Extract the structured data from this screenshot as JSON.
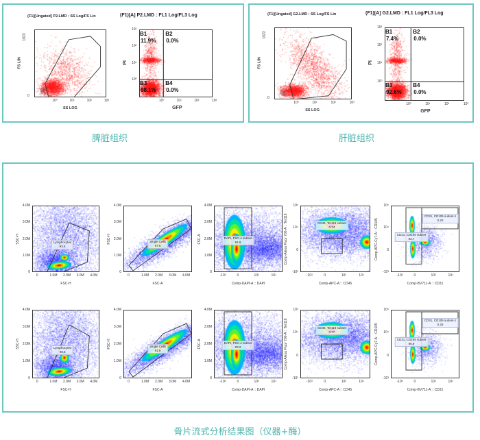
{
  "top_panels": [
    {
      "caption": "脾脏组织",
      "scatter": {
        "title": "(F1)[Ungated] P2.LMD : SS Log/FS Lin",
        "xlabel": "SS LOG",
        "ylabel": "FS LIN",
        "yticks": [
          "1023",
          "0"
        ],
        "xticks": [
          "10⁰",
          "10¹",
          "10²",
          "10³"
        ]
      },
      "quadrant": {
        "title": "(F1)[A] P2.LMD : FL1 Log/FL3 Log",
        "xlabel": "GFP",
        "ylabel": "PI",
        "yticks": [
          "10³",
          "10²",
          "10¹",
          "10⁰"
        ],
        "xticks": [
          "10⁰",
          "10¹",
          "10²",
          "10³"
        ],
        "quadrants": [
          {
            "name": "B1",
            "value": "11.9%"
          },
          {
            "name": "B2",
            "value": "0.0%"
          },
          {
            "name": "B3",
            "value": "88.1%"
          },
          {
            "name": "B4",
            "value": "0.0%"
          }
        ]
      }
    },
    {
      "caption": "肝脏组织",
      "scatter": {
        "title": "(F1)[Ungated] G2.LMD : SS Log/FS Lin",
        "xlabel": "SS LOG",
        "ylabel": "FS LIN",
        "yticks": [
          "1023",
          "0"
        ],
        "xticks": [
          "10⁰",
          "10¹",
          "10²",
          "10³"
        ]
      },
      "quadrant": {
        "title": "(F1)[A] G2.LMD : FL1 Log/FL3 Log",
        "xlabel": "GFP",
        "ylabel": "PI",
        "yticks": [
          "10³",
          "10²",
          "10¹",
          "10⁰"
        ],
        "xticks": [
          "10⁰",
          "10¹",
          "10²",
          "10³"
        ],
        "quadrants": [
          {
            "name": "B1",
            "value": "7.4%"
          },
          {
            "name": "B2",
            "value": "0.0%"
          },
          {
            "name": "B3",
            "value": "92.6%"
          },
          {
            "name": "B4",
            "value": "0.0%"
          }
        ]
      }
    }
  ],
  "bottom_panel": {
    "caption": "骨片流式分析结果图（仪器+酶）",
    "axes": [
      {
        "xlabel": "FSC-H",
        "ylabel": "SSC-H",
        "xticks": [
          "0",
          "1.0M",
          "2.0M",
          "3.0M",
          "4.0M"
        ],
        "yticks": [
          "4.0M",
          "3.0M",
          "2.0M",
          "1.0M",
          "0"
        ]
      },
      {
        "xlabel": "FSC-A",
        "ylabel": "FSC-H",
        "xticks": [
          "0",
          "1.0M",
          "2.0M",
          "3.0M",
          "4.0M"
        ],
        "yticks": [
          "4.0M",
          "3.0M",
          "2.0M",
          "1.0M",
          "0"
        ]
      },
      {
        "xlabel": "Comp-DAPI-A :: DAPI",
        "ylabel": "FSC-A",
        "xticks": [
          "-10³",
          "0",
          "10³",
          "10⁴"
        ],
        "yticks": [
          "4.0M",
          "3.0M",
          "2.0M",
          "1.0M",
          "0"
        ]
      },
      {
        "xlabel": "Comp-APC-A :: CD45",
        "ylabel": "Comp-Alexa Fluor 700-A :: Ter119",
        "xticks": [
          "-10³",
          "0",
          "10³",
          "10⁴"
        ],
        "yticks": [
          "10⁵",
          "10⁴",
          "0",
          "-10³"
        ]
      },
      {
        "xlabel": "Comp-BV711-A :: CD31",
        "ylabel": "Comp-APC-Cy7-A :: CD105",
        "xticks": [
          "-10³",
          "0",
          "10³",
          "10⁴"
        ],
        "yticks": [
          "10⁵",
          "10⁴",
          "0",
          "-10³"
        ]
      }
    ],
    "rows": [
      {
        "gates": [
          [
            {
              "name": "Lymphocytes",
              "value": "93.6"
            }
          ],
          [
            {
              "name": "Single Cells",
              "value": "87.6"
            }
          ],
          [
            {
              "name": "DAPI, FSC-A subset",
              "value": "91.6"
            }
          ],
          [
            {
              "name": "CD45, Ter119 subset",
              "value": "0.74"
            }
          ],
          [
            {
              "name": "CD31, CD105 subset-1",
              "value": "0.20"
            },
            {
              "name": "CD31, CD105 subset",
              "value": "92.7"
            }
          ]
        ]
      },
      {
        "gates": [
          [
            {
              "name": "Lymphocytes",
              "value": "90.6"
            }
          ],
          [
            {
              "name": "Single Cells",
              "value": "91.6"
            }
          ],
          [
            {
              "name": "DAPI, FSC-A subset",
              "value": "93.2"
            }
          ],
          [
            {
              "name": "CD45, Ter119 subset",
              "value": "0.77"
            }
          ],
          [
            {
              "name": "CD31, CD105 subset-1",
              "value": "0.25"
            },
            {
              "name": "CD31, CD105 subset",
              "value": "86.9"
            }
          ]
        ]
      }
    ]
  },
  "colors": {
    "panel_border": "#6cc6c0",
    "caption": "#4bb5ae",
    "dots_red": "#ff1a1a",
    "dots_blue": "#1a1aff"
  }
}
